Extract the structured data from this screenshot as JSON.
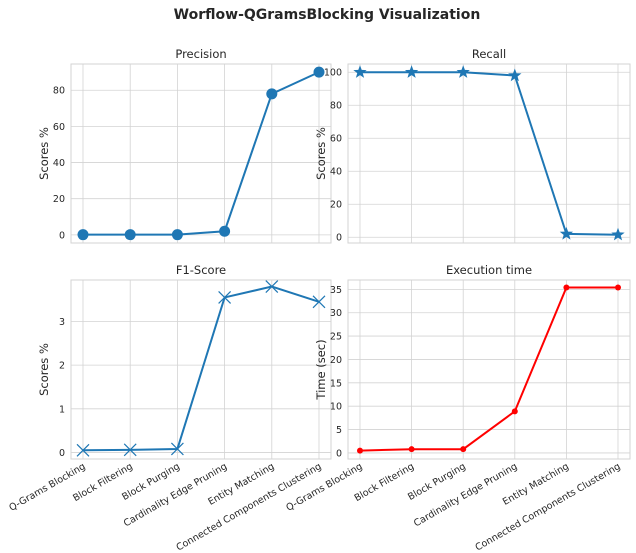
{
  "figure": {
    "title": "Worflow-QGramsBlocking Visualization"
  },
  "chart_data": [
    {
      "type": "line",
      "title": "Precision",
      "xlabel": "",
      "ylabel": "Scores %",
      "categories": [
        "Q-Grams Blocking",
        "Block Filtering",
        "Block Purging",
        "Cardinality Edge Pruning",
        "Entity Matching",
        "Connected Components Clustering"
      ],
      "values": [
        0.1,
        0.1,
        0.1,
        2.0,
        78.0,
        90.0
      ],
      "ylim": [
        -4.5,
        94.5
      ],
      "yticks": [
        0,
        20,
        40,
        60,
        80
      ],
      "marker": "circle",
      "color": "#1f77b4",
      "show_xtick_labels": false,
      "grid": true
    },
    {
      "type": "line",
      "title": "Recall",
      "xlabel": "",
      "ylabel": "Scores %",
      "categories": [
        "Q-Grams Blocking",
        "Block Filtering",
        "Block Purging",
        "Cardinality Edge Pruning",
        "Entity Matching",
        "Connected Components Clustering"
      ],
      "values": [
        100.0,
        100.0,
        100.0,
        98.0,
        2.0,
        1.5
      ],
      "ylim": [
        -3.5,
        105.0
      ],
      "yticks": [
        0,
        20,
        40,
        60,
        80,
        100
      ],
      "marker": "star",
      "color": "#1f77b4",
      "show_xtick_labels": false,
      "grid": true
    },
    {
      "type": "line",
      "title": "F1-Score",
      "xlabel": "",
      "ylabel": "Scores %",
      "categories": [
        "Q-Grams Blocking",
        "Block Filtering",
        "Block Purging",
        "Cardinality Edge Pruning",
        "Entity Matching",
        "Connected Components Clustering"
      ],
      "values": [
        0.05,
        0.06,
        0.08,
        3.55,
        3.8,
        3.45
      ],
      "ylim": [
        -0.15,
        3.95
      ],
      "yticks": [
        0,
        1,
        2,
        3
      ],
      "marker": "x",
      "color": "#1f77b4",
      "show_xtick_labels": true,
      "grid": true
    },
    {
      "type": "line",
      "title": "Execution time",
      "xlabel": "",
      "ylabel": "Time (sec)",
      "categories": [
        "Q-Grams Blocking",
        "Block Filtering",
        "Block Purging",
        "Cardinality Edge Pruning",
        "Entity Matching",
        "Connected Components Clustering"
      ],
      "values": [
        0.5,
        0.8,
        0.8,
        8.9,
        35.4,
        35.4
      ],
      "ylim": [
        -1.3,
        37.0
      ],
      "yticks": [
        0,
        5,
        10,
        15,
        20,
        25,
        30,
        35
      ],
      "marker": "dot",
      "color": "#ff0000",
      "show_xtick_labels": true,
      "grid": true
    }
  ]
}
